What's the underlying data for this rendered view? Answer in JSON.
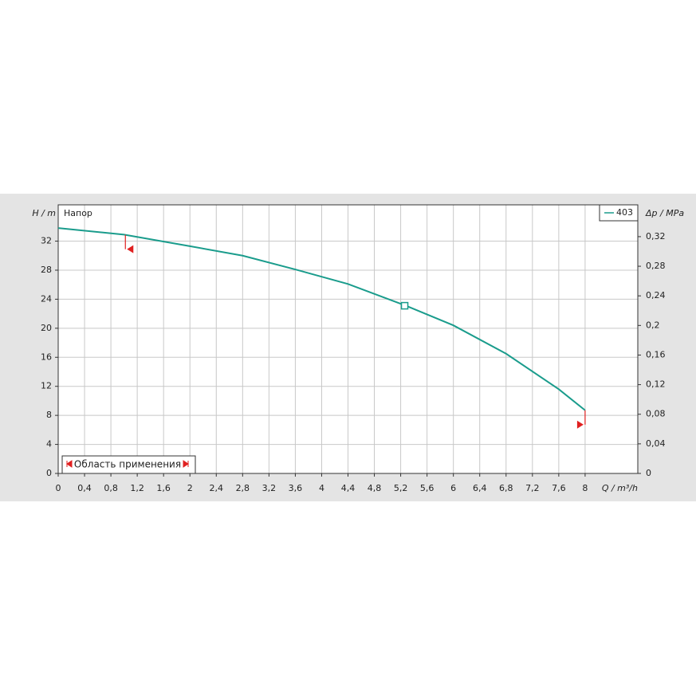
{
  "chart_data": {
    "type": "line",
    "y_label": "H / m",
    "y2_label": "Δp / MPa",
    "x_label": "Q / m³/h",
    "annotation": "Напор",
    "application_range_label": "Область применения",
    "x": [
      0,
      1.0,
      2.0,
      2.8,
      3.6,
      4.4,
      5.28,
      6.0,
      6.8,
      7.6,
      8.0
    ],
    "series": [
      {
        "name": "403",
        "color": "#1a9c8c",
        "values": [
          33.8,
          32.9,
          31.3,
          30.0,
          28.1,
          26.1,
          23.1,
          20.4,
          16.5,
          11.6,
          8.7
        ]
      }
    ],
    "operating_point": {
      "x": 5.26,
      "y": 23.1
    },
    "range_limits": [
      1.02,
      8.0
    ],
    "xlim": [
      0,
      8.8
    ],
    "xticks": [
      0,
      {
        "value": 0.4,
        "label": "0,4"
      },
      {
        "value": 0.8,
        "label": "0,8"
      },
      {
        "value": 1.2,
        "label": "1,2"
      },
      {
        "value": 1.6,
        "label": "1,6"
      },
      2,
      {
        "value": 2.4,
        "label": "2,4"
      },
      {
        "value": 2.8,
        "label": "2,8"
      },
      {
        "value": 3.2,
        "label": "3,2"
      },
      {
        "value": 3.6,
        "label": "3,6"
      },
      4,
      {
        "value": 4.4,
        "label": "4,4"
      },
      {
        "value": 4.8,
        "label": "4,8"
      },
      {
        "value": 5.2,
        "label": "5,2"
      },
      {
        "value": 5.6,
        "label": "5,6"
      },
      6,
      {
        "value": 6.4,
        "label": "6,4"
      },
      {
        "value": 6.8,
        "label": "6,8"
      },
      {
        "value": 7.2,
        "label": "7,2"
      },
      {
        "value": 7.6,
        "label": "7,6"
      },
      8
    ],
    "ylim": [
      0,
      37
    ],
    "yticks": [
      0,
      4,
      8,
      12,
      16,
      20,
      24,
      28,
      32
    ],
    "y2lim": [
      0,
      0.363
    ],
    "y2ticks": [
      0,
      {
        "value": 0.04,
        "label": "0,04"
      },
      {
        "value": 0.08,
        "label": "0,08"
      },
      {
        "value": 0.12,
        "label": "0,12"
      },
      {
        "value": 0.16,
        "label": "0,16"
      },
      {
        "value": 0.2,
        "label": "0,2"
      },
      {
        "value": 0.24,
        "label": "0,24"
      },
      {
        "value": 0.28,
        "label": "0,28"
      },
      {
        "value": 0.32,
        "label": "0,32"
      }
    ],
    "grid": true,
    "legend": "upper right",
    "limit_color": "#e02020"
  }
}
